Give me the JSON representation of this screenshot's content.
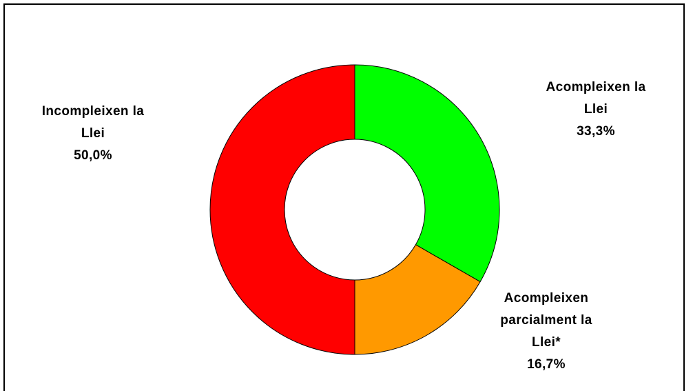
{
  "chart_data": {
    "type": "pie",
    "donut": true,
    "categories": [
      "Acompleixen la Llei",
      "Acompleixen parcialment la Llei*",
      "Incompleixen la Llei"
    ],
    "values": [
      33.3,
      16.7,
      50.0
    ],
    "percent_labels": [
      "33,3%",
      "16,7%",
      "50,0%"
    ],
    "colors": [
      "#00ff00",
      "#ff9900",
      "#ff0000"
    ],
    "label_lines": [
      [
        "Acompleixen la",
        "Llei"
      ],
      [
        "Acompleixen",
        "parcialment la",
        "Llei*"
      ],
      [
        "Incompleixen la",
        "Llei"
      ]
    ],
    "title": "",
    "legend": "none"
  }
}
